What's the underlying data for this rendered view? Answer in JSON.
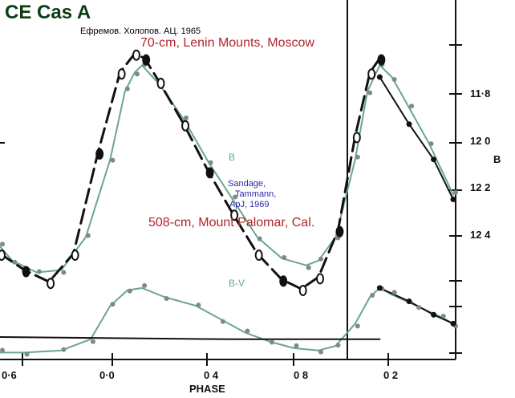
{
  "header": {
    "title": "CE Cas A",
    "authors_ru": "Ефремов. Холопов. АЦ. 1965",
    "telescope1": "70-cm,  Lenin Mounts, Moscow",
    "citation_lines": [
      "Sandage,",
      "Tammann,",
      "ApJ, 1969"
    ],
    "telescope2": "508-cm, Mount Palomar, Cal."
  },
  "colors": {
    "black": "#111111",
    "teal": "#6aa68e",
    "red": "#b0242b",
    "blue": "#2a2aa6",
    "title_green": "#0e3a14"
  },
  "chart_data": {
    "type": "scatter",
    "xlabel": "PHASE",
    "x_tick_labels": [
      "0·6",
      "0·0",
      "0 4",
      "0 8",
      "0 2"
    ],
    "x_phase_range": [
      -0.55,
      1.3
    ],
    "y_right_label": "B",
    "y_right_tick_labels": [
      "11·8",
      "12 0",
      "12 2",
      "12 4"
    ],
    "b_magnitude_range": [
      11.56,
      12.6
    ],
    "bv_range": [
      0.9,
      1.35
    ],
    "series": [
      {
        "name": "B",
        "color": "teal",
        "style": "fit-curve",
        "points": [
          [
            -0.55,
            12.42
          ],
          [
            -0.5,
            12.48
          ],
          [
            -0.4,
            12.53
          ],
          [
            -0.3,
            12.52
          ],
          [
            -0.2,
            12.38
          ],
          [
            -0.1,
            12.05
          ],
          [
            -0.04,
            11.76
          ],
          [
            0.0,
            11.68
          ],
          [
            0.03,
            11.65
          ],
          [
            0.1,
            11.73
          ],
          [
            0.2,
            11.88
          ],
          [
            0.3,
            12.06
          ],
          [
            0.4,
            12.22
          ],
          [
            0.5,
            12.38
          ],
          [
            0.6,
            12.47
          ],
          [
            0.7,
            12.5
          ],
          [
            0.75,
            12.48
          ],
          [
            0.82,
            12.38
          ],
          [
            0.9,
            12.05
          ],
          [
            0.95,
            11.76
          ],
          [
            1.0,
            11.65
          ],
          [
            1.05,
            11.7
          ],
          [
            1.12,
            11.83
          ],
          [
            1.2,
            11.98
          ],
          [
            1.3,
            12.2
          ]
        ]
      },
      {
        "name": "B-V",
        "color": "teal",
        "style": "fit-curve",
        "points": [
          [
            -0.55,
            1.33
          ],
          [
            -0.45,
            1.33
          ],
          [
            -0.3,
            1.32
          ],
          [
            -0.18,
            1.27
          ],
          [
            -0.1,
            1.12
          ],
          [
            -0.03,
            1.05
          ],
          [
            0.03,
            1.04
          ],
          [
            0.12,
            1.08
          ],
          [
            0.25,
            1.12
          ],
          [
            0.35,
            1.18
          ],
          [
            0.45,
            1.24
          ],
          [
            0.55,
            1.28
          ],
          [
            0.65,
            1.31
          ],
          [
            0.75,
            1.32
          ],
          [
            0.82,
            1.3
          ],
          [
            0.9,
            1.2
          ],
          [
            0.96,
            1.08
          ],
          [
            1.0,
            1.04
          ],
          [
            1.05,
            1.07
          ],
          [
            1.15,
            1.12
          ],
          [
            1.25,
            1.17
          ],
          [
            1.3,
            1.2
          ]
        ]
      },
      {
        "name": "",
        "color": "black",
        "style": "dashed",
        "points": [
          [
            -0.55,
            12.45
          ],
          [
            -0.45,
            12.52
          ],
          [
            -0.35,
            12.57
          ],
          [
            -0.25,
            12.45
          ],
          [
            -0.15,
            12.02
          ],
          [
            -0.06,
            11.68
          ],
          [
            0.0,
            11.6
          ],
          [
            0.04,
            11.62
          ],
          [
            0.1,
            11.72
          ],
          [
            0.2,
            11.9
          ],
          [
            0.3,
            12.1
          ],
          [
            0.4,
            12.28
          ],
          [
            0.5,
            12.45
          ],
          [
            0.6,
            12.56
          ],
          [
            0.68,
            12.6
          ],
          [
            0.75,
            12.55
          ],
          [
            0.83,
            12.35
          ],
          [
            0.9,
            11.95
          ],
          [
            0.96,
            11.68
          ],
          [
            1.0,
            11.62
          ]
        ]
      },
      {
        "name": "",
        "color": "black",
        "style": "solid",
        "points": [
          [
            1.0,
            11.7
          ],
          [
            1.12,
            11.9
          ],
          [
            1.22,
            12.05
          ],
          [
            1.3,
            12.22
          ]
        ]
      },
      {
        "name": "",
        "color": "black",
        "style": "solid",
        "points": [
          [
            -0.55,
            1.26
          ],
          [
            0.4,
            1.27
          ],
          [
            1.0,
            1.27
          ]
        ]
      },
      {
        "name": "",
        "color": "black",
        "style": "solid",
        "points": [
          [
            1.0,
            1.04
          ],
          [
            1.12,
            1.1
          ],
          [
            1.22,
            1.16
          ],
          [
            1.3,
            1.2
          ]
        ]
      }
    ]
  }
}
